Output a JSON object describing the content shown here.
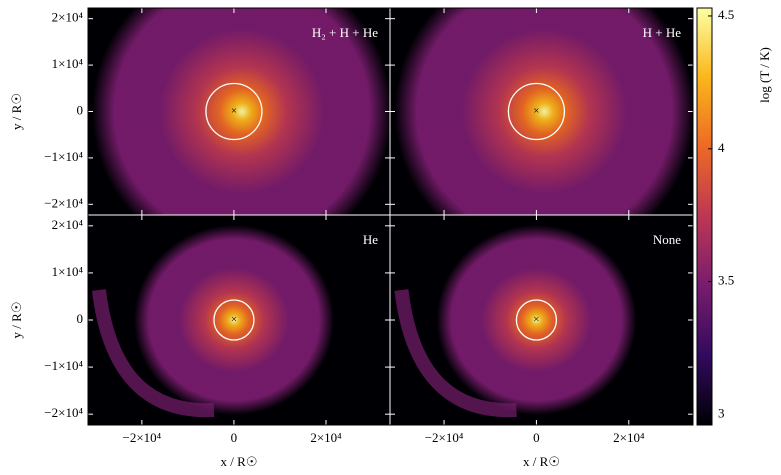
{
  "chart_data": {
    "type": "image",
    "panels": [
      {
        "label": "H₂ + H + He"
      },
      {
        "label": "H + He"
      },
      {
        "label": "He"
      },
      {
        "label": "None"
      }
    ],
    "xlabel": "x / R☉",
    "ylabel": "y / R☉",
    "xlim": [
      -31700,
      33900
    ],
    "ylim": [
      -22300,
      22300
    ],
    "xticks": [
      {
        "value": -20000,
        "label": "−2×10⁴"
      },
      0,
      {
        "value": 20000,
        "label": "2×10⁴"
      }
    ],
    "yticks": [
      {
        "value": -20000,
        "label": "−2×10⁴"
      },
      {
        "value": -10000,
        "label": "−1×10⁴"
      },
      0,
      {
        "value": 10000,
        "label": "1×10⁴"
      },
      {
        "value": 20000,
        "label": "2×10⁴"
      }
    ],
    "colorbar": {
      "label": "log (T / K)",
      "lim": [
        2.96,
        4.53
      ],
      "ticks": [
        3,
        3.5,
        4,
        4.5
      ]
    },
    "colormap": [
      "#000004",
      "#320a5e",
      "#781c6d",
      "#bc3754",
      "#ed6925",
      "#fbb61a",
      "#fcffa4"
    ]
  }
}
